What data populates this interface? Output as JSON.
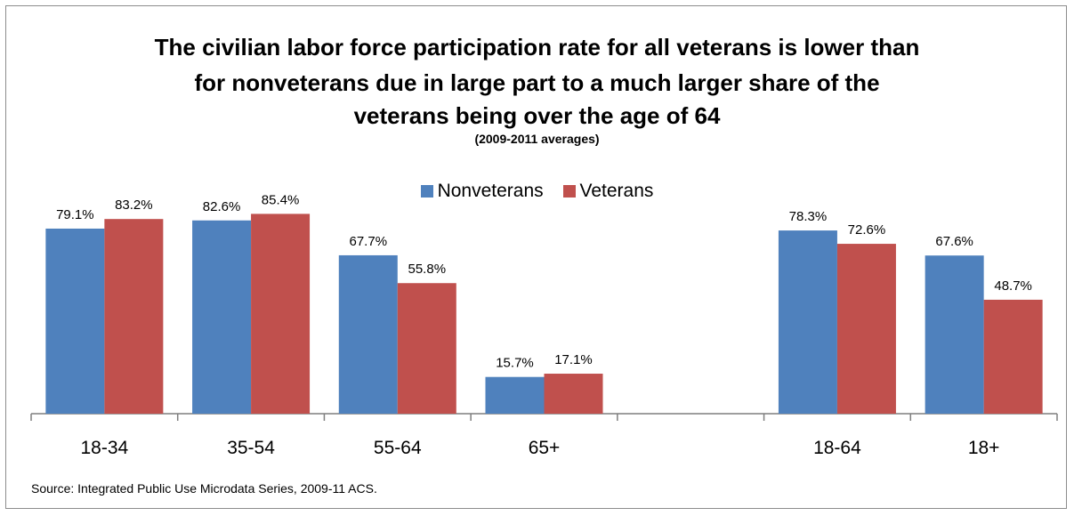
{
  "title_lines": [
    "The civilian labor force participation rate for all veterans is lower than",
    "for nonveterans due in large part to a much larger share of the",
    "veterans being over the age of 64"
  ],
  "subtitle": "(2009-2011 averages)",
  "source": "Source: Integrated Public Use Microdata Series, 2009-11 ACS.",
  "colors": {
    "nonveterans": "#4f81bd",
    "veterans": "#c0504d",
    "axis": "#7f7f7f"
  },
  "chart_data": {
    "type": "bar",
    "categories": [
      "18-34",
      "35-54",
      "55-64",
      "65+",
      "",
      "18-64",
      "18+"
    ],
    "series": [
      {
        "name": "Nonveterans",
        "values": [
          79.1,
          82.6,
          67.7,
          15.7,
          null,
          78.3,
          67.6
        ],
        "labels": [
          "79.1%",
          "82.6%",
          "67.7%",
          "15.7%",
          "",
          "78.3%",
          "67.6%"
        ]
      },
      {
        "name": "Veterans",
        "values": [
          83.2,
          85.4,
          55.8,
          17.1,
          null,
          72.6,
          48.7
        ],
        "labels": [
          "83.2%",
          "85.4%",
          "55.8%",
          "17.1%",
          "",
          "72.6%",
          "48.7%"
        ]
      }
    ],
    "ylim": [
      0,
      100
    ],
    "grid": false,
    "legend_position": "top"
  }
}
